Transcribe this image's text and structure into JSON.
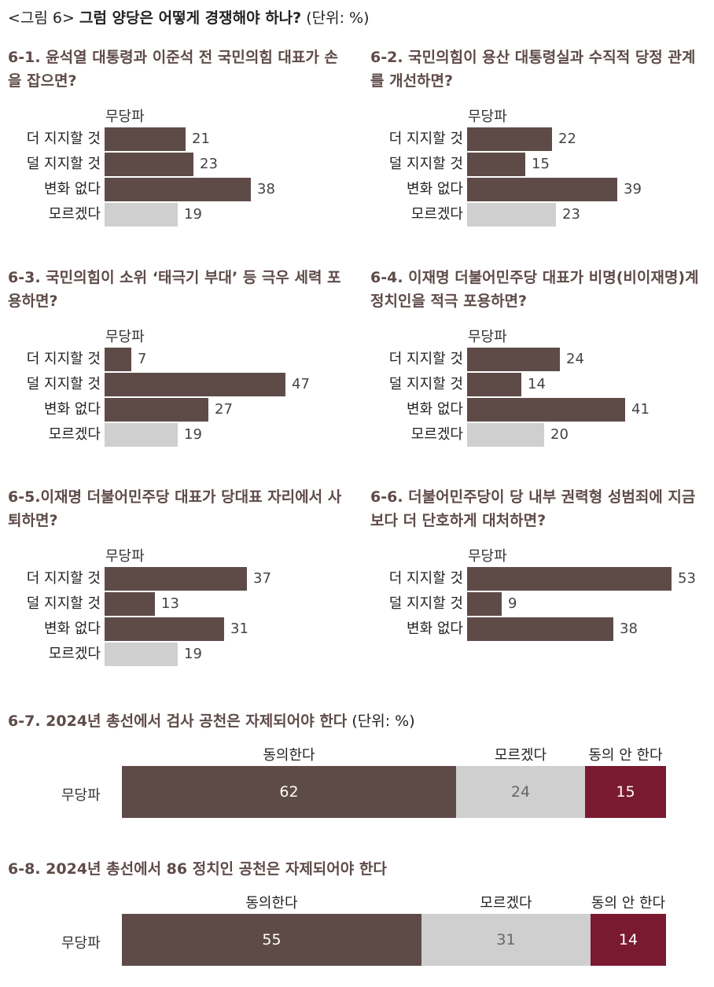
{
  "header": {
    "prefix": "<그림 6>",
    "title": "그럼 양당은 어떻게 경쟁해야 하나?",
    "unit": "(단위: %)"
  },
  "colors": {
    "dark": "#5e4b48",
    "gray": "#cfcfcf",
    "red": "#7a1a30"
  },
  "chart_data": [
    {
      "type": "bar",
      "id": "6-1",
      "title": "6-1. 윤석열 대통령과 이준석 전 국민의힘 대표가 손을 잡으면?",
      "group": "무당파",
      "categories": [
        "더 지지할 것",
        "덜 지지할 것",
        "변화 없다",
        "모르겠다"
      ],
      "values": [
        21,
        23,
        38,
        19
      ]
    },
    {
      "type": "bar",
      "id": "6-2",
      "title": "6-2. 국민의힘이 용산 대통령실과 수직적 당정 관계를 개선하면?",
      "group": "무당파",
      "categories": [
        "더 지지할 것",
        "덜 지지할 것",
        "변화 없다",
        "모르겠다"
      ],
      "values": [
        22,
        15,
        39,
        23
      ]
    },
    {
      "type": "bar",
      "id": "6-3",
      "title": "6-3. 국민의힘이 소위 ‘태극기 부대’ 등 극우 세력 포용하면?",
      "group": "무당파",
      "categories": [
        "더 지지할 것",
        "덜 지지할 것",
        "변화 없다",
        "모르겠다"
      ],
      "values": [
        7,
        47,
        27,
        19
      ]
    },
    {
      "type": "bar",
      "id": "6-4",
      "title": "6-4. 이재명 더불어민주당 대표가 비명(비이재명)계 정치인을 적극 포용하면?",
      "group": "무당파",
      "categories": [
        "더 지지할 것",
        "덜 지지할 것",
        "변화 없다",
        "모르겠다"
      ],
      "values": [
        24,
        14,
        41,
        20
      ]
    },
    {
      "type": "bar",
      "id": "6-5",
      "title": "6-5.이재명 더불어민주당 대표가 당대표 자리에서 사퇴하면?",
      "group": "무당파",
      "categories": [
        "더 지지할 것",
        "덜 지지할 것",
        "변화 없다",
        "모르겠다"
      ],
      "values": [
        37,
        13,
        31,
        19
      ]
    },
    {
      "type": "bar",
      "id": "6-6",
      "title": "6-6. 더불어민주당이 당 내부 권력형 성범죄에 지금보다 더 단호하게 대처하면?",
      "group": "무당파",
      "categories": [
        "더 지지할 것",
        "덜 지지할 것",
        "변화 없다"
      ],
      "values": [
        53,
        9,
        38
      ]
    },
    {
      "type": "stacked_bar",
      "id": "6-7",
      "title": "6-7. 2024년 총선에서 검사 공천은 자제되어야 한다",
      "unit": "(단위: %)",
      "group": "무당파",
      "series": [
        {
          "name": "동의한다",
          "value": 62
        },
        {
          "name": "모르겠다",
          "value": 24
        },
        {
          "name": "동의 안 한다",
          "value": 15
        }
      ]
    },
    {
      "type": "stacked_bar",
      "id": "6-8",
      "title": "6-8. 2024년 총선에서 86 정치인 공천은 자제되어야 한다",
      "unit": "",
      "group": "무당파",
      "series": [
        {
          "name": "동의한다",
          "value": 55
        },
        {
          "name": "모르겠다",
          "value": 31
        },
        {
          "name": "동의 안 한다",
          "value": 14
        }
      ]
    }
  ]
}
